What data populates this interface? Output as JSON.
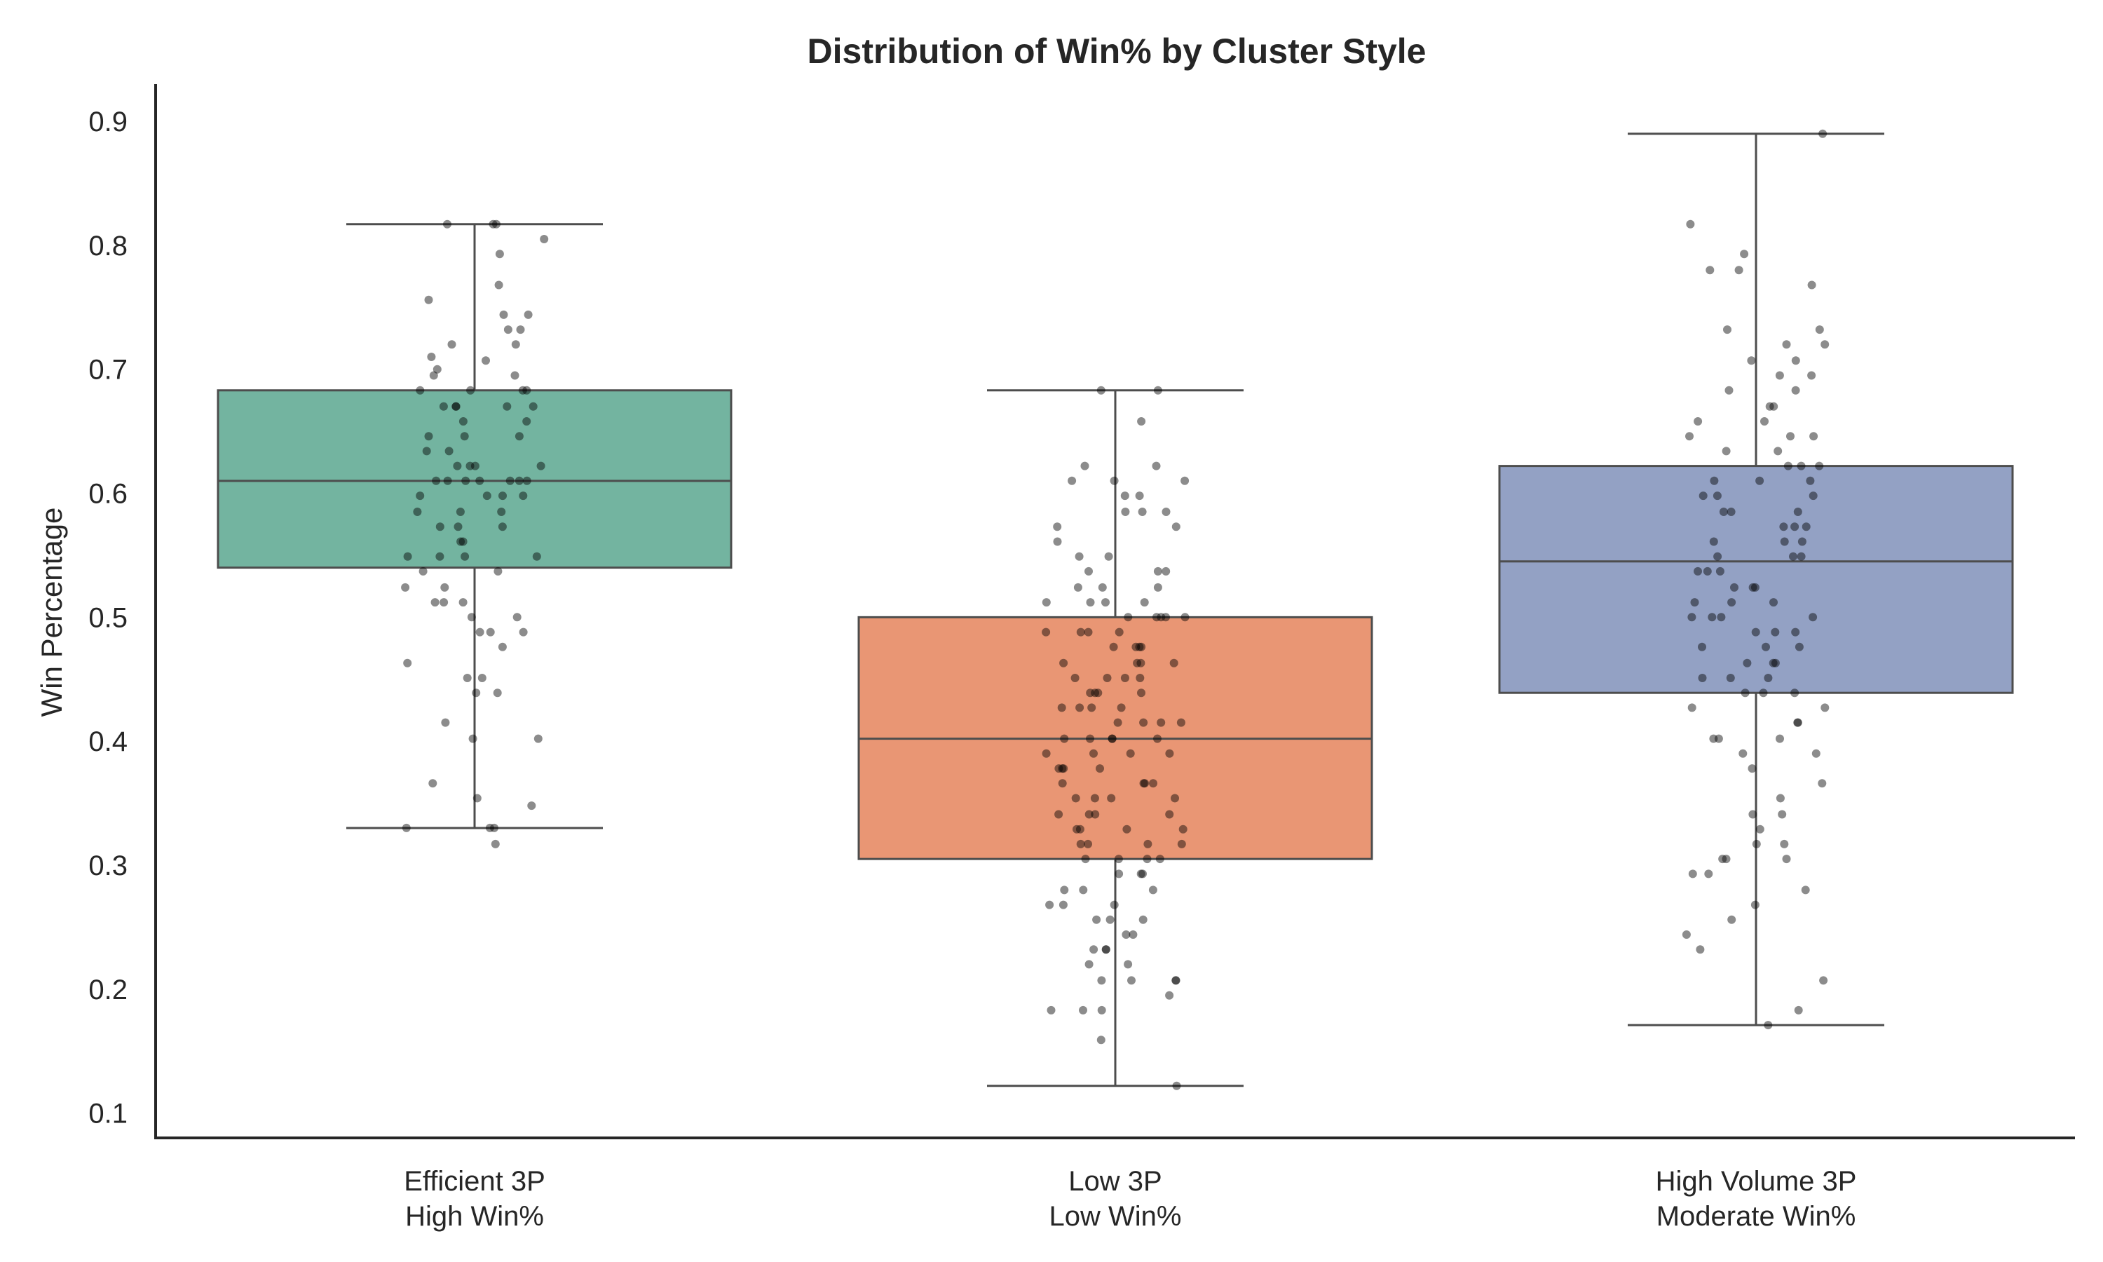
{
  "chart_data": {
    "type": "box",
    "title": "Distribution of Win% by Cluster Style",
    "xlabel": "",
    "ylabel": "Win Percentage",
    "ylim": [
      0.08,
      0.93
    ],
    "yticks": [
      0.1,
      0.2,
      0.3,
      0.4,
      0.5,
      0.6,
      0.7,
      0.8,
      0.9
    ],
    "grid": false,
    "legend": "none",
    "categories": [
      {
        "label_lines": [
          "Efficient 3P",
          "High Win%"
        ]
      },
      {
        "label_lines": [
          "Low 3P",
          "Low Win%"
        ]
      },
      {
        "label_lines": [
          "High Volume 3P",
          "Moderate Win%"
        ]
      }
    ],
    "boxes": [
      {
        "whisker_low": 0.33,
        "q1": 0.54,
        "median": 0.61,
        "q3": 0.683,
        "whisker_high": 0.817,
        "color": "#73b4a0"
      },
      {
        "whisker_low": 0.122,
        "q1": 0.305,
        "median": 0.402,
        "q3": 0.5,
        "whisker_high": 0.683,
        "color": "#e99674"
      },
      {
        "whisker_low": 0.171,
        "q1": 0.439,
        "median": 0.545,
        "q3": 0.622,
        "whisker_high": 0.89,
        "color": "#93a1c4"
      }
    ],
    "points": [
      [
        0.817,
        0.817,
        0.817,
        0.805,
        0.793,
        0.768,
        0.756,
        0.744,
        0.744,
        0.732,
        0.732,
        0.72,
        0.72,
        0.71,
        0.707,
        0.7,
        0.695,
        0.695,
        0.683,
        0.683,
        0.683,
        0.683,
        0.67,
        0.67,
        0.67,
        0.67,
        0.67,
        0.658,
        0.658,
        0.646,
        0.646,
        0.646,
        0.634,
        0.634,
        0.622,
        0.622,
        0.622,
        0.622,
        0.61,
        0.61,
        0.61,
        0.61,
        0.61,
        0.61,
        0.61,
        0.598,
        0.598,
        0.598,
        0.598,
        0.585,
        0.585,
        0.585,
        0.573,
        0.573,
        0.573,
        0.561,
        0.561,
        0.549,
        0.549,
        0.549,
        0.549,
        0.537,
        0.537,
        0.524,
        0.524,
        0.512,
        0.512,
        0.512,
        0.5,
        0.5,
        0.488,
        0.488,
        0.488,
        0.476,
        0.463,
        0.451,
        0.451,
        0.439,
        0.439,
        0.415,
        0.402,
        0.402,
        0.366,
        0.354,
        0.348,
        0.33,
        0.33,
        0.33,
        0.317
      ],
      [
        0.683,
        0.683,
        0.658,
        0.622,
        0.622,
        0.61,
        0.61,
        0.61,
        0.598,
        0.598,
        0.585,
        0.585,
        0.585,
        0.573,
        0.573,
        0.561,
        0.549,
        0.549,
        0.537,
        0.537,
        0.537,
        0.524,
        0.524,
        0.524,
        0.512,
        0.512,
        0.512,
        0.512,
        0.5,
        0.5,
        0.5,
        0.5,
        0.5,
        0.488,
        0.488,
        0.488,
        0.488,
        0.476,
        0.476,
        0.476,
        0.476,
        0.463,
        0.463,
        0.463,
        0.463,
        0.451,
        0.451,
        0.451,
        0.451,
        0.439,
        0.439,
        0.439,
        0.439,
        0.427,
        0.427,
        0.427,
        0.427,
        0.415,
        0.415,
        0.415,
        0.415,
        0.402,
        0.402,
        0.402,
        0.402,
        0.402,
        0.39,
        0.39,
        0.39,
        0.39,
        0.378,
        0.378,
        0.378,
        0.378,
        0.366,
        0.366,
        0.366,
        0.366,
        0.354,
        0.354,
        0.354,
        0.354,
        0.341,
        0.341,
        0.341,
        0.341,
        0.329,
        0.329,
        0.329,
        0.329,
        0.317,
        0.317,
        0.317,
        0.317,
        0.305,
        0.305,
        0.305,
        0.305,
        0.293,
        0.293,
        0.293,
        0.28,
        0.28,
        0.28,
        0.268,
        0.268,
        0.268,
        0.256,
        0.256,
        0.256,
        0.244,
        0.244,
        0.232,
        0.232,
        0.232,
        0.22,
        0.22,
        0.207,
        0.207,
        0.207,
        0.207,
        0.195,
        0.183,
        0.183,
        0.183,
        0.159,
        0.122
      ],
      [
        0.89,
        0.817,
        0.793,
        0.78,
        0.78,
        0.768,
        0.732,
        0.732,
        0.72,
        0.72,
        0.707,
        0.707,
        0.695,
        0.695,
        0.683,
        0.683,
        0.67,
        0.67,
        0.658,
        0.658,
        0.646,
        0.646,
        0.646,
        0.634,
        0.634,
        0.622,
        0.622,
        0.622,
        0.61,
        0.61,
        0.61,
        0.598,
        0.598,
        0.598,
        0.585,
        0.585,
        0.585,
        0.573,
        0.573,
        0.573,
        0.561,
        0.561,
        0.561,
        0.549,
        0.549,
        0.549,
        0.537,
        0.537,
        0.537,
        0.524,
        0.524,
        0.524,
        0.512,
        0.512,
        0.512,
        0.5,
        0.5,
        0.5,
        0.5,
        0.488,
        0.488,
        0.488,
        0.476,
        0.476,
        0.476,
        0.463,
        0.463,
        0.463,
        0.451,
        0.451,
        0.451,
        0.439,
        0.439,
        0.439,
        0.427,
        0.427,
        0.415,
        0.415,
        0.402,
        0.402,
        0.402,
        0.39,
        0.39,
        0.378,
        0.366,
        0.354,
        0.341,
        0.341,
        0.329,
        0.317,
        0.317,
        0.305,
        0.305,
        0.305,
        0.293,
        0.293,
        0.28,
        0.268,
        0.256,
        0.244,
        0.232,
        0.207,
        0.183,
        0.171
      ]
    ]
  }
}
